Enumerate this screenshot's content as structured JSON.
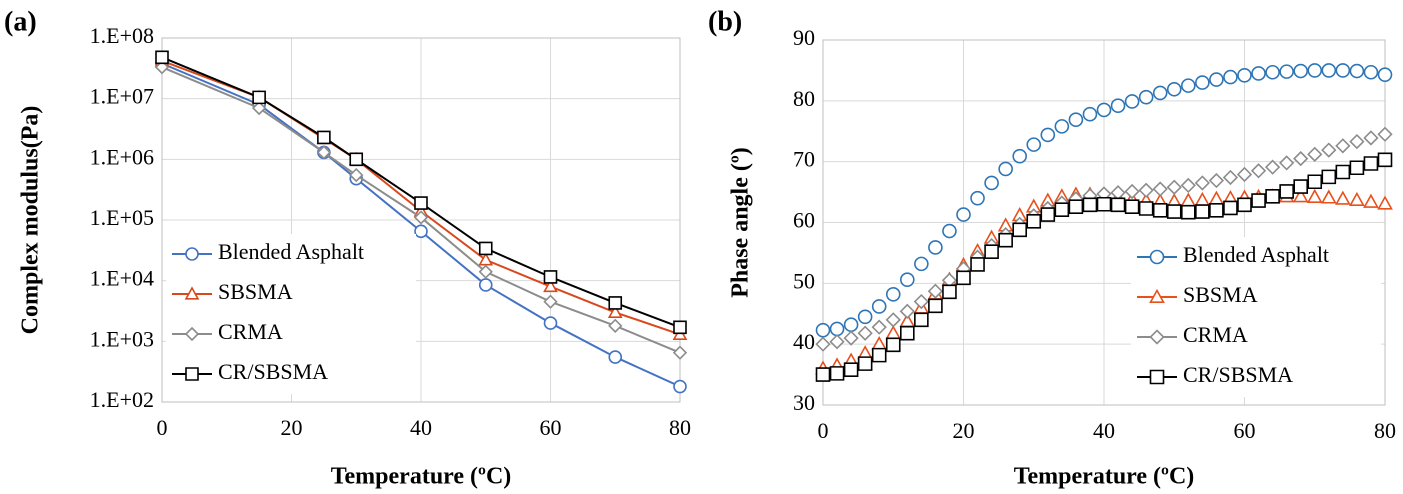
{
  "chart_data": [
    {
      "type": "line",
      "label": "(a)",
      "ylabel": "Complex modulus(Pa)",
      "xlabel": "Temperature (ºC)",
      "xlim": [
        0,
        80
      ],
      "xticks": [
        0,
        20,
        40,
        60,
        80
      ],
      "ylim": [
        100,
        100000000
      ],
      "log_y": true,
      "yticks": [
        {
          "value": 100,
          "label": "1.E+02"
        },
        {
          "value": 1000,
          "label": "1.E+03"
        },
        {
          "value": 10000,
          "label": "1.E+04"
        },
        {
          "value": 100000,
          "label": "1.E+05"
        },
        {
          "value": 1000000,
          "label": "1.E+06"
        },
        {
          "value": 10000000,
          "label": "1.E+07"
        },
        {
          "value": 100000000,
          "label": "1.E+08"
        }
      ],
      "grid": true,
      "legend": "lower left",
      "lines": true,
      "x": [
        0,
        15,
        25,
        30,
        40,
        50,
        60,
        70,
        80
      ],
      "series": [
        {
          "name": "Blended Asphalt",
          "color": "#4472c4",
          "marker": "circle",
          "values": [
            38000000,
            8000000,
            1300000,
            480000,
            65000,
            8500,
            2000,
            550,
            180
          ]
        },
        {
          "name": "SBSMA",
          "color": "#d9481c",
          "marker": "triangle",
          "values": [
            42000000,
            10500000,
            2200000,
            1000000,
            140000,
            22000,
            8000,
            3000,
            1300
          ]
        },
        {
          "name": "CRMA",
          "color": "#8c8c8c",
          "marker": "diamond",
          "values": [
            33000000,
            7000000,
            1300000,
            550000,
            110000,
            14000,
            4500,
            1800,
            650
          ]
        },
        {
          "name": "CR/SBSMA",
          "color": "#000000",
          "marker": "square",
          "values": [
            48000000,
            10500000,
            2300000,
            1000000,
            190000,
            34000,
            11500,
            4300,
            1700
          ]
        }
      ]
    },
    {
      "type": "scatter",
      "label": "(b)",
      "ylabel": "Phase angle (º)",
      "xlabel": "Temperature (ºC)",
      "xlim": [
        0,
        80
      ],
      "xticks": [
        0,
        20,
        40,
        60,
        80
      ],
      "ylim": [
        30,
        90
      ],
      "yticks": [
        30,
        40,
        50,
        60,
        70,
        80,
        90
      ],
      "grid": true,
      "legend": "lower right",
      "lines": false,
      "x": [
        0,
        2,
        4,
        6,
        8,
        10,
        12,
        14,
        16,
        18,
        20,
        22,
        24,
        26,
        28,
        30,
        32,
        34,
        36,
        38,
        40,
        42,
        44,
        46,
        48,
        50,
        52,
        54,
        56,
        58,
        60,
        62,
        64,
        66,
        68,
        70,
        72,
        74,
        76,
        78,
        80
      ],
      "series": [
        {
          "name": "Blended Asphalt",
          "color": "#2e75b6",
          "marker": "circle",
          "values": [
            42.3,
            42.5,
            43.2,
            44.5,
            46.2,
            48.2,
            50.6,
            53.2,
            55.9,
            58.6,
            61.3,
            64,
            66.5,
            68.8,
            70.9,
            72.8,
            74.4,
            75.8,
            76.9,
            77.8,
            78.5,
            79.2,
            79.9,
            80.6,
            81.3,
            81.9,
            82.5,
            83,
            83.5,
            83.9,
            84.2,
            84.5,
            84.7,
            84.8,
            84.9,
            85,
            85,
            85,
            84.9,
            84.7,
            84.3
          ]
        },
        {
          "name": "SBSMA",
          "color": "#e8501c",
          "marker": "triangle",
          "values": [
            36,
            36.5,
            37.3,
            38.5,
            40,
            41.8,
            43.8,
            46,
            48.3,
            50.6,
            53,
            55.3,
            57.5,
            59.5,
            61.2,
            62.6,
            63.6,
            64.3,
            64.6,
            64.6,
            64.4,
            64.1,
            63.8,
            63.6,
            63.5,
            63.5,
            63.6,
            63.7,
            63.9,
            64,
            64.1,
            64.2,
            64.3,
            64.3,
            64.3,
            64.2,
            64.1,
            63.9,
            63.7,
            63.4,
            63.1
          ]
        },
        {
          "name": "CRMA",
          "color": "#8c8c8c",
          "marker": "diamond",
          "values": [
            40,
            40.4,
            41,
            41.8,
            42.8,
            44,
            45.4,
            47,
            48.7,
            50.5,
            52.4,
            54.3,
            56.2,
            58,
            59.7,
            61.1,
            62.3,
            63.2,
            63.9,
            64.4,
            64.7,
            64.9,
            65.1,
            65.3,
            65.5,
            65.8,
            66.1,
            66.5,
            66.9,
            67.4,
            67.9,
            68.5,
            69.1,
            69.8,
            70.5,
            71.2,
            71.9,
            72.6,
            73.3,
            73.9,
            74.5
          ]
        },
        {
          "name": "CR/SBSMA",
          "color": "#000000",
          "marker": "square",
          "values": [
            35,
            35.2,
            35.8,
            36.8,
            38.2,
            39.9,
            41.8,
            44,
            46.3,
            48.6,
            50.9,
            53.1,
            55.2,
            57.1,
            58.8,
            60.2,
            61.3,
            62.1,
            62.6,
            62.9,
            63,
            62.9,
            62.6,
            62.3,
            62,
            61.8,
            61.7,
            61.8,
            62,
            62.4,
            62.9,
            63.6,
            64.3,
            65.1,
            65.9,
            66.7,
            67.5,
            68.3,
            69,
            69.7,
            70.3
          ]
        }
      ]
    }
  ]
}
